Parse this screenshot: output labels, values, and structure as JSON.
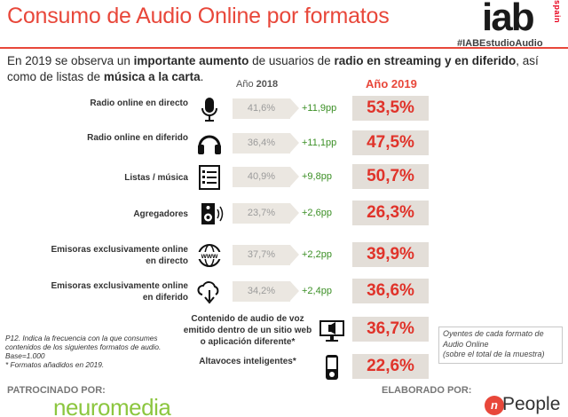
{
  "header": {
    "title": "Consumo de Audio Online por formatos",
    "logo_text": "iab",
    "logo_sub": "spain",
    "hashtag": "#IABEstudioAudio"
  },
  "intro": {
    "p1": "En 2019 se observa un ",
    "b1": "importante aumento",
    "p2": " de usuarios de ",
    "b2": "radio en streaming  y en diferido",
    "p3": ", así como de listas de ",
    "b3": "música a la carta",
    "p4": "."
  },
  "chart_data": {
    "type": "table",
    "columns": {
      "year_prev_prefix": "Año ",
      "year_prev": "2018",
      "year_curr": "Año 2019"
    },
    "rows": [
      {
        "label": "Radio online en directo",
        "icon": "microphone-icon",
        "v2018": "41,6%",
        "diff": "+11,9pp",
        "v2019": "53,5%"
      },
      {
        "label": "Radio online en diferido",
        "icon": "headphones-icon",
        "v2018": "36,4%",
        "diff": "+11,1pp",
        "v2019": "47,5%"
      },
      {
        "label": "Listas / música",
        "icon": "playlist-icon",
        "v2018": "40,9%",
        "diff": "+9,8pp",
        "v2019": "50,7%"
      },
      {
        "label": "Agregadores",
        "icon": "speaker-icon",
        "v2018": "23,7%",
        "diff": "+2,6pp",
        "v2019": "26,3%"
      },
      {
        "label": "Emisoras exclusivamente online en directo",
        "icon": "www-globe-icon",
        "v2018": "37,7%",
        "diff": "+2,2pp",
        "v2019": "39,9%"
      },
      {
        "label": "Emisoras exclusivamente online en diferido",
        "icon": "cloud-download-icon",
        "v2018": "34,2%",
        "diff": "+2,4pp",
        "v2019": "36,6%"
      },
      {
        "label": "Contenido de audio de voz emitido dentro de un sitio web o aplicación diferente*",
        "icon": "monitor-audio-icon",
        "v2018": "",
        "diff": "",
        "v2019": "36,7%"
      },
      {
        "label": "Altavoces inteligentes*",
        "icon": "smart-speaker-icon",
        "v2018": "",
        "diff": "",
        "v2019": "22,6%"
      }
    ]
  },
  "notes": {
    "left": "P12. Indica la frecuencia con la que consumes contenidos de los siguientes formatos de audio. Base=1.000\n* Formatos añadidos en 2019.",
    "right": "Oyentes de cada formato de Audio Online\n(sobre el total de la muestra)"
  },
  "footer": {
    "sponsor_label": "PATROCINADO POR:",
    "sponsor_name": "neuromedia",
    "author_label": "ELABORADO POR:",
    "author_name": "People",
    "author_mark": "n"
  },
  "colors": {
    "accent": "#e8473a",
    "value_2019_bg": "#e3ded8",
    "value_2018_bg": "#ebe7e1",
    "diff_green": "#3b8f25",
    "sponsor_green": "#8cc63f"
  }
}
